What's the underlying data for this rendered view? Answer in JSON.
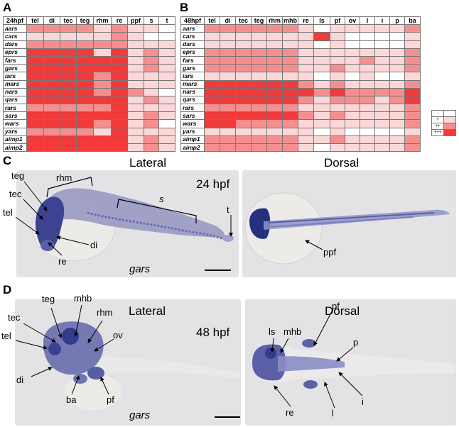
{
  "panels": {
    "a": "A",
    "b": "B",
    "c": "C",
    "d": "D"
  },
  "colors": {
    "none": "#ffffff",
    "low": "#fbd7d7",
    "mid": "#f58f8f",
    "high": "#ef3b3b",
    "stain": "#4a4f99"
  },
  "table_a": {
    "headers": [
      "24hpf",
      "tel",
      "di",
      "tec",
      "teg",
      "rhm",
      "re",
      "ppf",
      "s",
      "t"
    ],
    "rows": [
      {
        "gene": "aars",
        "levels": [
          2,
          2,
          2,
          2,
          1,
          2,
          1,
          1,
          0
        ]
      },
      {
        "gene": "cars",
        "levels": [
          1,
          1,
          1,
          1,
          1,
          2,
          1,
          0,
          0
        ]
      },
      {
        "gene": "dars",
        "levels": [
          2,
          2,
          2,
          2,
          2,
          2,
          1,
          1,
          1
        ]
      },
      {
        "gene": "eprs",
        "levels": [
          3,
          3,
          3,
          3,
          1,
          3,
          1,
          2,
          1
        ]
      },
      {
        "gene": "fars",
        "levels": [
          3,
          3,
          3,
          3,
          3,
          3,
          1,
          2,
          1
        ]
      },
      {
        "gene": "gars",
        "levels": [
          3,
          3,
          3,
          3,
          3,
          3,
          1,
          2,
          1
        ]
      },
      {
        "gene": "iars",
        "levels": [
          3,
          3,
          3,
          3,
          2,
          3,
          1,
          1,
          1
        ]
      },
      {
        "gene": "mars",
        "levels": [
          3,
          3,
          3,
          3,
          2,
          3,
          1,
          1,
          1
        ]
      },
      {
        "gene": "nars",
        "levels": [
          3,
          3,
          3,
          3,
          2,
          3,
          2,
          1,
          0
        ]
      },
      {
        "gene": "qars",
        "levels": [
          3,
          3,
          3,
          3,
          3,
          3,
          1,
          2,
          1
        ]
      },
      {
        "gene": "rars",
        "levels": [
          2,
          2,
          2,
          2,
          2,
          3,
          1,
          1,
          1
        ]
      },
      {
        "gene": "sars",
        "levels": [
          3,
          3,
          3,
          3,
          3,
          3,
          1,
          2,
          1
        ]
      },
      {
        "gene": "wars",
        "levels": [
          3,
          3,
          3,
          3,
          2,
          3,
          1,
          2,
          0
        ]
      },
      {
        "gene": "yars",
        "levels": [
          2,
          2,
          2,
          2,
          1,
          3,
          1,
          1,
          1
        ]
      },
      {
        "gene": "aimp1",
        "levels": [
          3,
          3,
          3,
          3,
          3,
          3,
          1,
          2,
          1
        ]
      },
      {
        "gene": "aimp2",
        "levels": [
          3,
          3,
          3,
          3,
          3,
          3,
          1,
          2,
          1
        ]
      }
    ]
  },
  "table_b": {
    "headers": [
      "48hpf",
      "tel",
      "di",
      "tec",
      "teg",
      "rhm",
      "mhb",
      "re",
      "ls",
      "pf",
      "ov",
      "l",
      "i",
      "p",
      "ba"
    ],
    "rows": [
      {
        "gene": "aars",
        "levels": [
          2,
          2,
          2,
          2,
          2,
          2,
          1,
          0,
          1,
          1,
          1,
          1,
          1,
          2
        ]
      },
      {
        "gene": "cars",
        "levels": [
          1,
          1,
          1,
          1,
          1,
          1,
          1,
          3,
          1,
          0,
          0,
          0,
          0,
          1
        ]
      },
      {
        "gene": "dars",
        "levels": [
          1,
          1,
          1,
          1,
          1,
          1,
          1,
          0,
          1,
          0,
          0,
          0,
          0,
          1
        ]
      },
      {
        "gene": "eprs",
        "levels": [
          2,
          2,
          2,
          2,
          2,
          2,
          1,
          1,
          1,
          1,
          1,
          1,
          1,
          2
        ]
      },
      {
        "gene": "fars",
        "levels": [
          2,
          2,
          2,
          2,
          2,
          2,
          1,
          1,
          1,
          1,
          2,
          1,
          1,
          2
        ]
      },
      {
        "gene": "gars",
        "levels": [
          2,
          2,
          2,
          2,
          2,
          2,
          1,
          1,
          2,
          1,
          1,
          1,
          1,
          2
        ]
      },
      {
        "gene": "iars",
        "levels": [
          1,
          1,
          1,
          1,
          1,
          1,
          1,
          0,
          1,
          0,
          1,
          0,
          0,
          1
        ]
      },
      {
        "gene": "mars",
        "levels": [
          3,
          3,
          3,
          3,
          3,
          3,
          2,
          1,
          2,
          1,
          1,
          1,
          1,
          2
        ]
      },
      {
        "gene": "nars",
        "levels": [
          3,
          3,
          3,
          3,
          3,
          3,
          3,
          2,
          3,
          2,
          2,
          2,
          2,
          3
        ]
      },
      {
        "gene": "qars",
        "levels": [
          3,
          3,
          3,
          3,
          3,
          3,
          2,
          1,
          2,
          2,
          2,
          1,
          2,
          3
        ]
      },
      {
        "gene": "rars",
        "levels": [
          2,
          2,
          2,
          2,
          2,
          2,
          1,
          1,
          1,
          1,
          1,
          1,
          1,
          2
        ]
      },
      {
        "gene": "sars",
        "levels": [
          3,
          3,
          3,
          3,
          3,
          3,
          2,
          1,
          2,
          1,
          1,
          1,
          1,
          2
        ]
      },
      {
        "gene": "wars",
        "levels": [
          3,
          3,
          2,
          2,
          2,
          2,
          1,
          1,
          1,
          1,
          1,
          1,
          1,
          2
        ]
      },
      {
        "gene": "yars",
        "levels": [
          1,
          1,
          1,
          1,
          1,
          1,
          1,
          0,
          1,
          0,
          0,
          0,
          0,
          1
        ]
      },
      {
        "gene": "aimp1",
        "levels": [
          2,
          2,
          2,
          2,
          2,
          2,
          1,
          1,
          2,
          1,
          1,
          1,
          1,
          2
        ]
      },
      {
        "gene": "aimp2",
        "levels": [
          2,
          2,
          2,
          2,
          2,
          2,
          1,
          0,
          1,
          1,
          1,
          1,
          1,
          2
        ]
      }
    ]
  },
  "legend": {
    "items": [
      {
        "label": "-",
        "level": 0
      },
      {
        "label": "+",
        "level": 1
      },
      {
        "label": "++",
        "level": 2
      },
      {
        "label": "+++",
        "level": 3
      }
    ]
  },
  "panel_c": {
    "lateral_title": "Lateral",
    "dorsal_title": "Dorsal",
    "stage": "24 hpf",
    "species": "gars",
    "labels": {
      "teg": "teg",
      "tec": "tec",
      "tel": "tel",
      "re": "re",
      "di": "di",
      "rhm": "rhm",
      "s": "s",
      "t": "t",
      "ppf": "ppf"
    }
  },
  "panel_d": {
    "lateral_title": "Lateral",
    "dorsal_title": "Dorsal",
    "stage": "48 hpf",
    "species": "gars",
    "labels": {
      "teg": "teg",
      "mhb": "mhb",
      "rhm": "rhm",
      "tec": "tec",
      "tel": "tel",
      "ov": "ov",
      "di": "di",
      "ba": "ba",
      "pf": "pf",
      "ls": "ls",
      "mhb2": "mhb",
      "pf2": "pf",
      "p": "p",
      "i": "i",
      "l": "l",
      "re": "re"
    }
  }
}
